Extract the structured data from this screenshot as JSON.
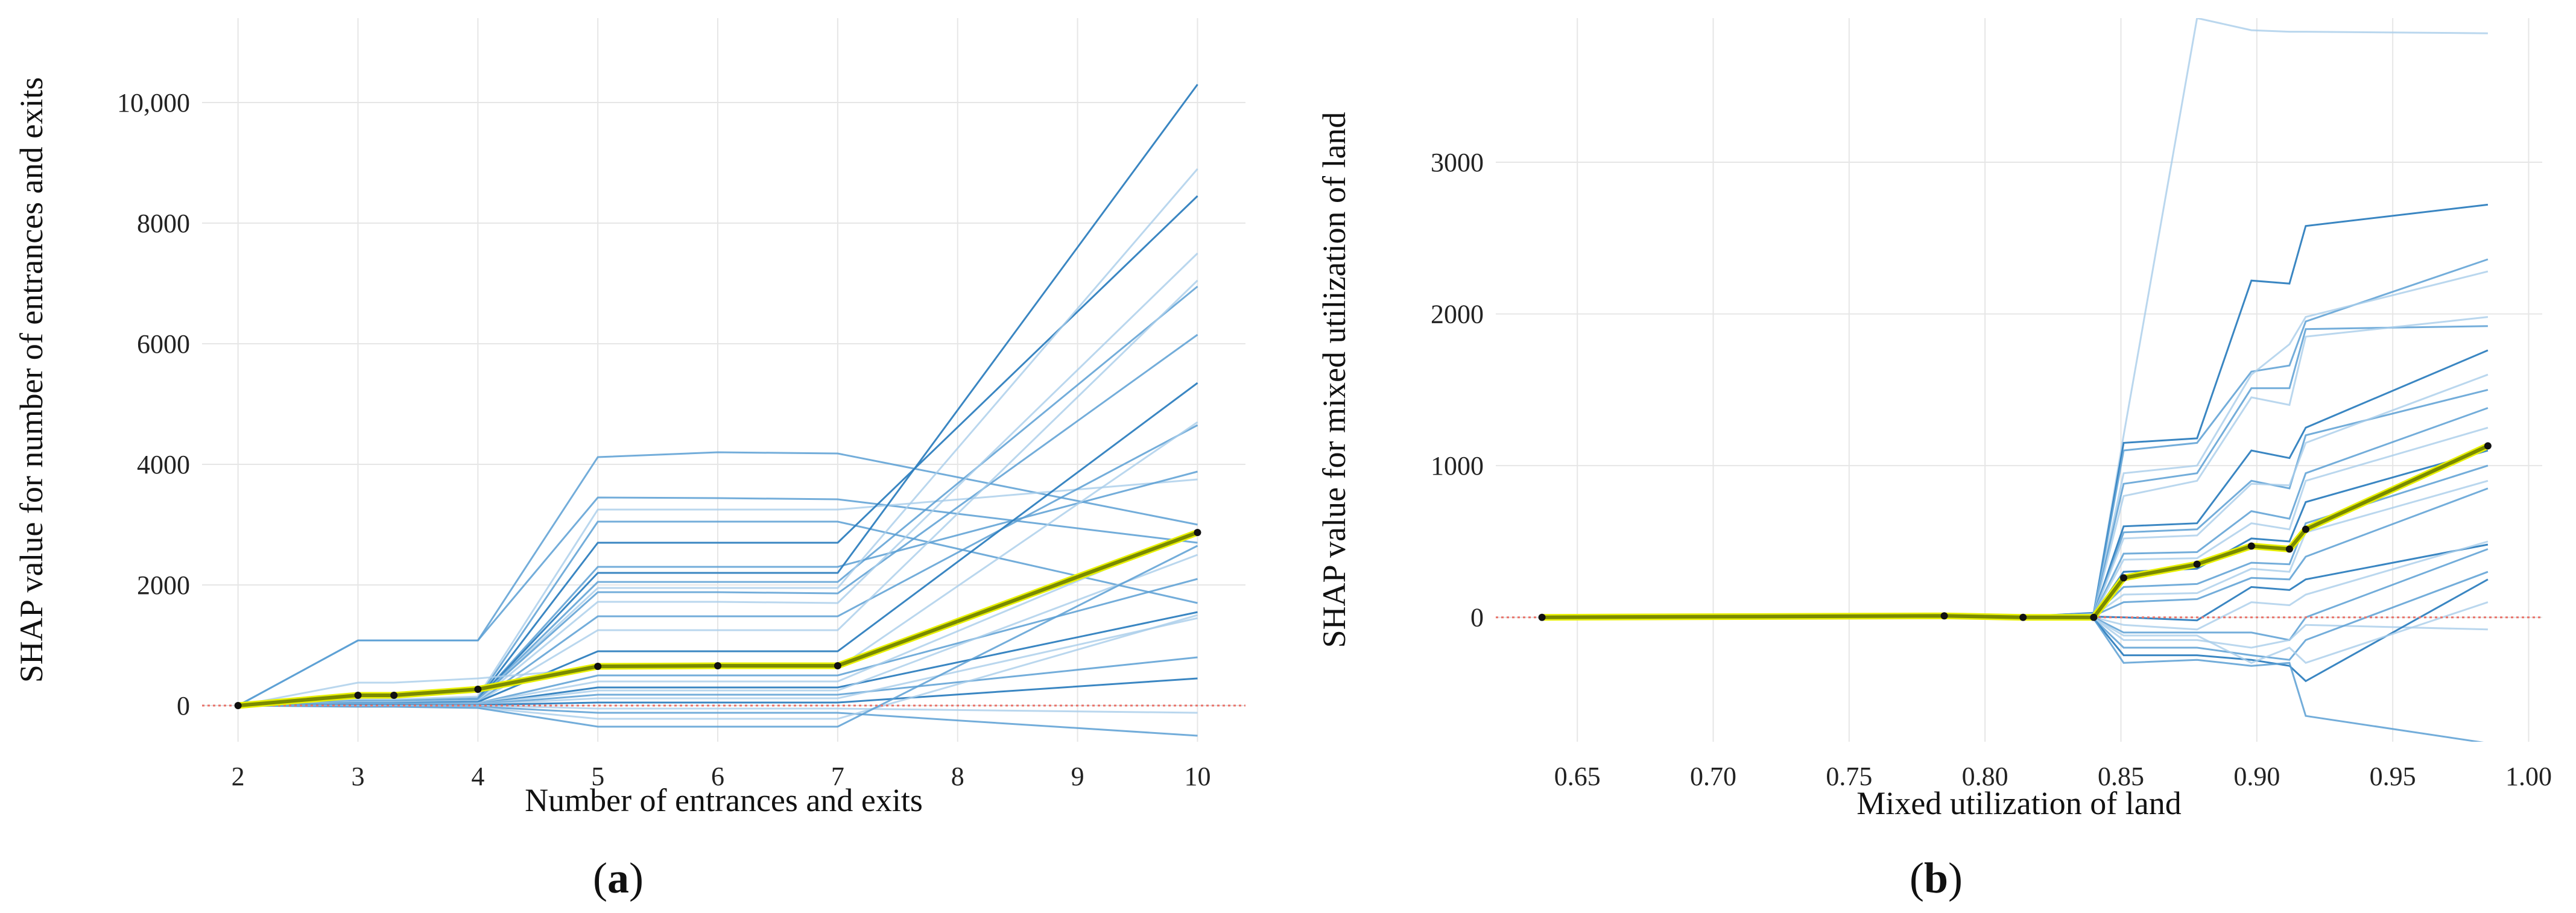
{
  "colors": {
    "ice_dark": "#2f7fbf",
    "ice_mid": "#5a9fd4",
    "ice_light": "#a9cdea",
    "avg_line": "#7a8a00",
    "avg_outline": "#e8f000",
    "avg_marker": "#111111",
    "zero_line": "#e8736b",
    "grid": "#e6e6e6"
  },
  "chart_data": [
    {
      "type": "line",
      "caption": "(a)",
      "xlabel": "Number of entrances and exits",
      "ylabel": "SHAP value for number of entrances and exits",
      "xlim": [
        1.7,
        10.4
      ],
      "ylim": [
        -600,
        11400
      ],
      "xticks": [
        2,
        3,
        4,
        5,
        6,
        7,
        8,
        9,
        10
      ],
      "xtick_labels": [
        "2",
        "3",
        "4",
        "5",
        "6",
        "7",
        "8",
        "9",
        "10"
      ],
      "yticks": [
        0,
        2000,
        4000,
        6000,
        8000,
        10000
      ],
      "ytick_labels": [
        "0",
        "2000",
        "4000",
        "6000",
        "8000",
        "10,000"
      ],
      "grid": true,
      "x": [
        2,
        3,
        3.3,
        4,
        5,
        6,
        7,
        10
      ],
      "zero_line": 0,
      "average": {
        "name": "average",
        "values": [
          0,
          170,
          170,
          270,
          650,
          660,
          660,
          2870
        ]
      },
      "series": [
        {
          "shade": "mid",
          "values": [
            0,
            1080,
            1080,
            1080,
            4120,
            4200,
            4180,
            3000
          ]
        },
        {
          "shade": "mid",
          "values": [
            0,
            1080,
            1080,
            1080,
            3450,
            3440,
            3420,
            2700
          ]
        },
        {
          "shade": "light",
          "values": [
            0,
            100,
            100,
            150,
            3250,
            3250,
            3250,
            3750
          ]
        },
        {
          "shade": "mid",
          "values": [
            0,
            80,
            80,
            120,
            3050,
            3050,
            3050,
            1700
          ]
        },
        {
          "shade": "dark",
          "values": [
            0,
            60,
            60,
            100,
            2700,
            2700,
            2700,
            8450
          ]
        },
        {
          "shade": "mid",
          "values": [
            0,
            60,
            60,
            100,
            2300,
            2300,
            2300,
            3880
          ]
        },
        {
          "shade": "dark",
          "values": [
            0,
            60,
            60,
            100,
            2200,
            2200,
            2200,
            10300
          ]
        },
        {
          "shade": "mid",
          "values": [
            0,
            60,
            60,
            100,
            2050,
            2050,
            2050,
            6950
          ]
        },
        {
          "shade": "light",
          "values": [
            0,
            60,
            60,
            100,
            1950,
            1950,
            1950,
            8900
          ]
        },
        {
          "shade": "mid",
          "values": [
            0,
            60,
            60,
            100,
            1880,
            1880,
            1860,
            6150
          ]
        },
        {
          "shade": "light",
          "values": [
            0,
            60,
            60,
            80,
            1720,
            1720,
            1700,
            7500
          ]
        },
        {
          "shade": "mid",
          "values": [
            0,
            40,
            40,
            60,
            1480,
            1480,
            1480,
            4650
          ]
        },
        {
          "shade": "light",
          "values": [
            0,
            40,
            40,
            60,
            1250,
            1250,
            1250,
            7050
          ]
        },
        {
          "shade": "dark",
          "values": [
            0,
            40,
            40,
            60,
            900,
            900,
            900,
            5350
          ]
        },
        {
          "shade": "light",
          "values": [
            0,
            380,
            380,
            450,
            620,
            620,
            620,
            4700
          ]
        },
        {
          "shade": "mid",
          "values": [
            0,
            30,
            30,
            40,
            500,
            500,
            500,
            2100
          ]
        },
        {
          "shade": "light",
          "values": [
            0,
            30,
            30,
            40,
            400,
            400,
            400,
            2900
          ]
        },
        {
          "shade": "dark",
          "values": [
            0,
            20,
            20,
            30,
            300,
            300,
            300,
            1550
          ]
        },
        {
          "shade": "light",
          "values": [
            0,
            20,
            20,
            30,
            250,
            250,
            250,
            2500
          ]
        },
        {
          "shade": "mid",
          "values": [
            0,
            20,
            20,
            20,
            180,
            180,
            180,
            800
          ]
        },
        {
          "shade": "light",
          "values": [
            0,
            10,
            10,
            20,
            120,
            120,
            120,
            1450
          ]
        },
        {
          "shade": "dark",
          "values": [
            0,
            10,
            10,
            10,
            50,
            50,
            50,
            450
          ]
        },
        {
          "shade": "light",
          "values": [
            0,
            0,
            0,
            0,
            -50,
            -50,
            -50,
            -120
          ]
        },
        {
          "shade": "mid",
          "values": [
            0,
            -10,
            -10,
            -20,
            -120,
            -120,
            -120,
            -500
          ]
        },
        {
          "shade": "light",
          "values": [
            0,
            -10,
            -10,
            -30,
            -220,
            -220,
            -220,
            1500
          ]
        },
        {
          "shade": "mid",
          "values": [
            0,
            -20,
            -20,
            -40,
            -350,
            -350,
            -350,
            2650
          ]
        }
      ]
    },
    {
      "type": "line",
      "caption": "(b)",
      "xlabel": "Mixed utilization of land",
      "ylabel": "SHAP value for mixed utilization of land",
      "xlim": [
        0.62,
        1.005
      ],
      "ylim": [
        -820,
        3950
      ],
      "xticks": [
        0.65,
        0.7,
        0.75,
        0.8,
        0.85,
        0.9,
        0.95,
        1.0
      ],
      "xtick_labels": [
        "0.65",
        "0.70",
        "0.75",
        "0.80",
        "0.85",
        "0.90",
        "0.95",
        "1.00"
      ],
      "yticks": [
        0,
        1000,
        2000,
        3000
      ],
      "ytick_labels": [
        "0",
        "1000",
        "2000",
        "3000"
      ],
      "grid": true,
      "x": [
        0.637,
        0.785,
        0.814,
        0.84,
        0.851,
        0.878,
        0.898,
        0.912,
        0.918,
        0.985
      ],
      "zero_line": 0,
      "average": {
        "name": "average",
        "values": [
          0,
          10,
          0,
          0,
          260,
          350,
          470,
          450,
          580,
          1130
        ]
      },
      "series": [
        {
          "shade": "light",
          "values": [
            0,
            10,
            5,
            30,
            1200,
            3950,
            3870,
            3860,
            3860,
            3850
          ]
        },
        {
          "shade": "dark",
          "values": [
            0,
            10,
            5,
            30,
            1150,
            1180,
            2220,
            2200,
            2580,
            2720
          ]
        },
        {
          "shade": "mid",
          "values": [
            0,
            10,
            5,
            25,
            1100,
            1150,
            1620,
            1660,
            1950,
            2360
          ]
        },
        {
          "shade": "light",
          "values": [
            0,
            10,
            5,
            25,
            950,
            1000,
            1600,
            1800,
            1980,
            2280
          ]
        },
        {
          "shade": "mid",
          "values": [
            0,
            10,
            5,
            25,
            880,
            950,
            1510,
            1510,
            1900,
            1920
          ]
        },
        {
          "shade": "light",
          "values": [
            0,
            10,
            5,
            20,
            800,
            900,
            1450,
            1400,
            1850,
            1980
          ]
        },
        {
          "shade": "dark",
          "values": [
            0,
            10,
            5,
            20,
            600,
            620,
            1100,
            1050,
            1250,
            1760
          ]
        },
        {
          "shade": "mid",
          "values": [
            0,
            10,
            5,
            20,
            560,
            580,
            900,
            850,
            1200,
            1500
          ]
        },
        {
          "shade": "light",
          "values": [
            0,
            10,
            5,
            20,
            520,
            540,
            880,
            870,
            1150,
            1600
          ]
        },
        {
          "shade": "mid",
          "values": [
            0,
            10,
            5,
            15,
            420,
            430,
            700,
            650,
            950,
            1380
          ]
        },
        {
          "shade": "light",
          "values": [
            0,
            10,
            5,
            15,
            380,
            390,
            620,
            580,
            900,
            1250
          ]
        },
        {
          "shade": "dark",
          "values": [
            0,
            10,
            5,
            15,
            300,
            320,
            520,
            500,
            760,
            1100
          ]
        },
        {
          "shade": "mid",
          "values": [
            0,
            10,
            5,
            10,
            200,
            220,
            360,
            350,
            620,
            1000
          ]
        },
        {
          "shade": "light",
          "values": [
            0,
            10,
            5,
            10,
            150,
            160,
            320,
            300,
            560,
            900
          ]
        },
        {
          "shade": "mid",
          "values": [
            0,
            10,
            5,
            10,
            100,
            120,
            260,
            250,
            400,
            850
          ]
        },
        {
          "shade": "dark",
          "values": [
            0,
            5,
            0,
            5,
            0,
            -20,
            200,
            180,
            250,
            480
          ]
        },
        {
          "shade": "light",
          "values": [
            0,
            5,
            0,
            0,
            -50,
            -80,
            100,
            80,
            150,
            500
          ]
        },
        {
          "shade": "mid",
          "values": [
            0,
            5,
            0,
            0,
            -100,
            -100,
            -100,
            -150,
            0,
            450
          ]
        },
        {
          "shade": "light",
          "values": [
            0,
            0,
            0,
            -5,
            -150,
            -150,
            -200,
            -150,
            -50,
            -80
          ]
        },
        {
          "shade": "mid",
          "values": [
            0,
            0,
            0,
            -10,
            -200,
            -200,
            -250,
            -280,
            -150,
            300
          ]
        },
        {
          "shade": "dark",
          "values": [
            0,
            0,
            0,
            -10,
            -250,
            -250,
            -280,
            -320,
            -420,
            250
          ]
        },
        {
          "shade": "mid",
          "values": [
            0,
            0,
            0,
            -10,
            -300,
            -280,
            -320,
            -300,
            -650,
            -830
          ]
        },
        {
          "shade": "light",
          "values": [
            0,
            0,
            0,
            -5,
            -120,
            -120,
            -300,
            -200,
            -300,
            100
          ]
        }
      ]
    }
  ]
}
